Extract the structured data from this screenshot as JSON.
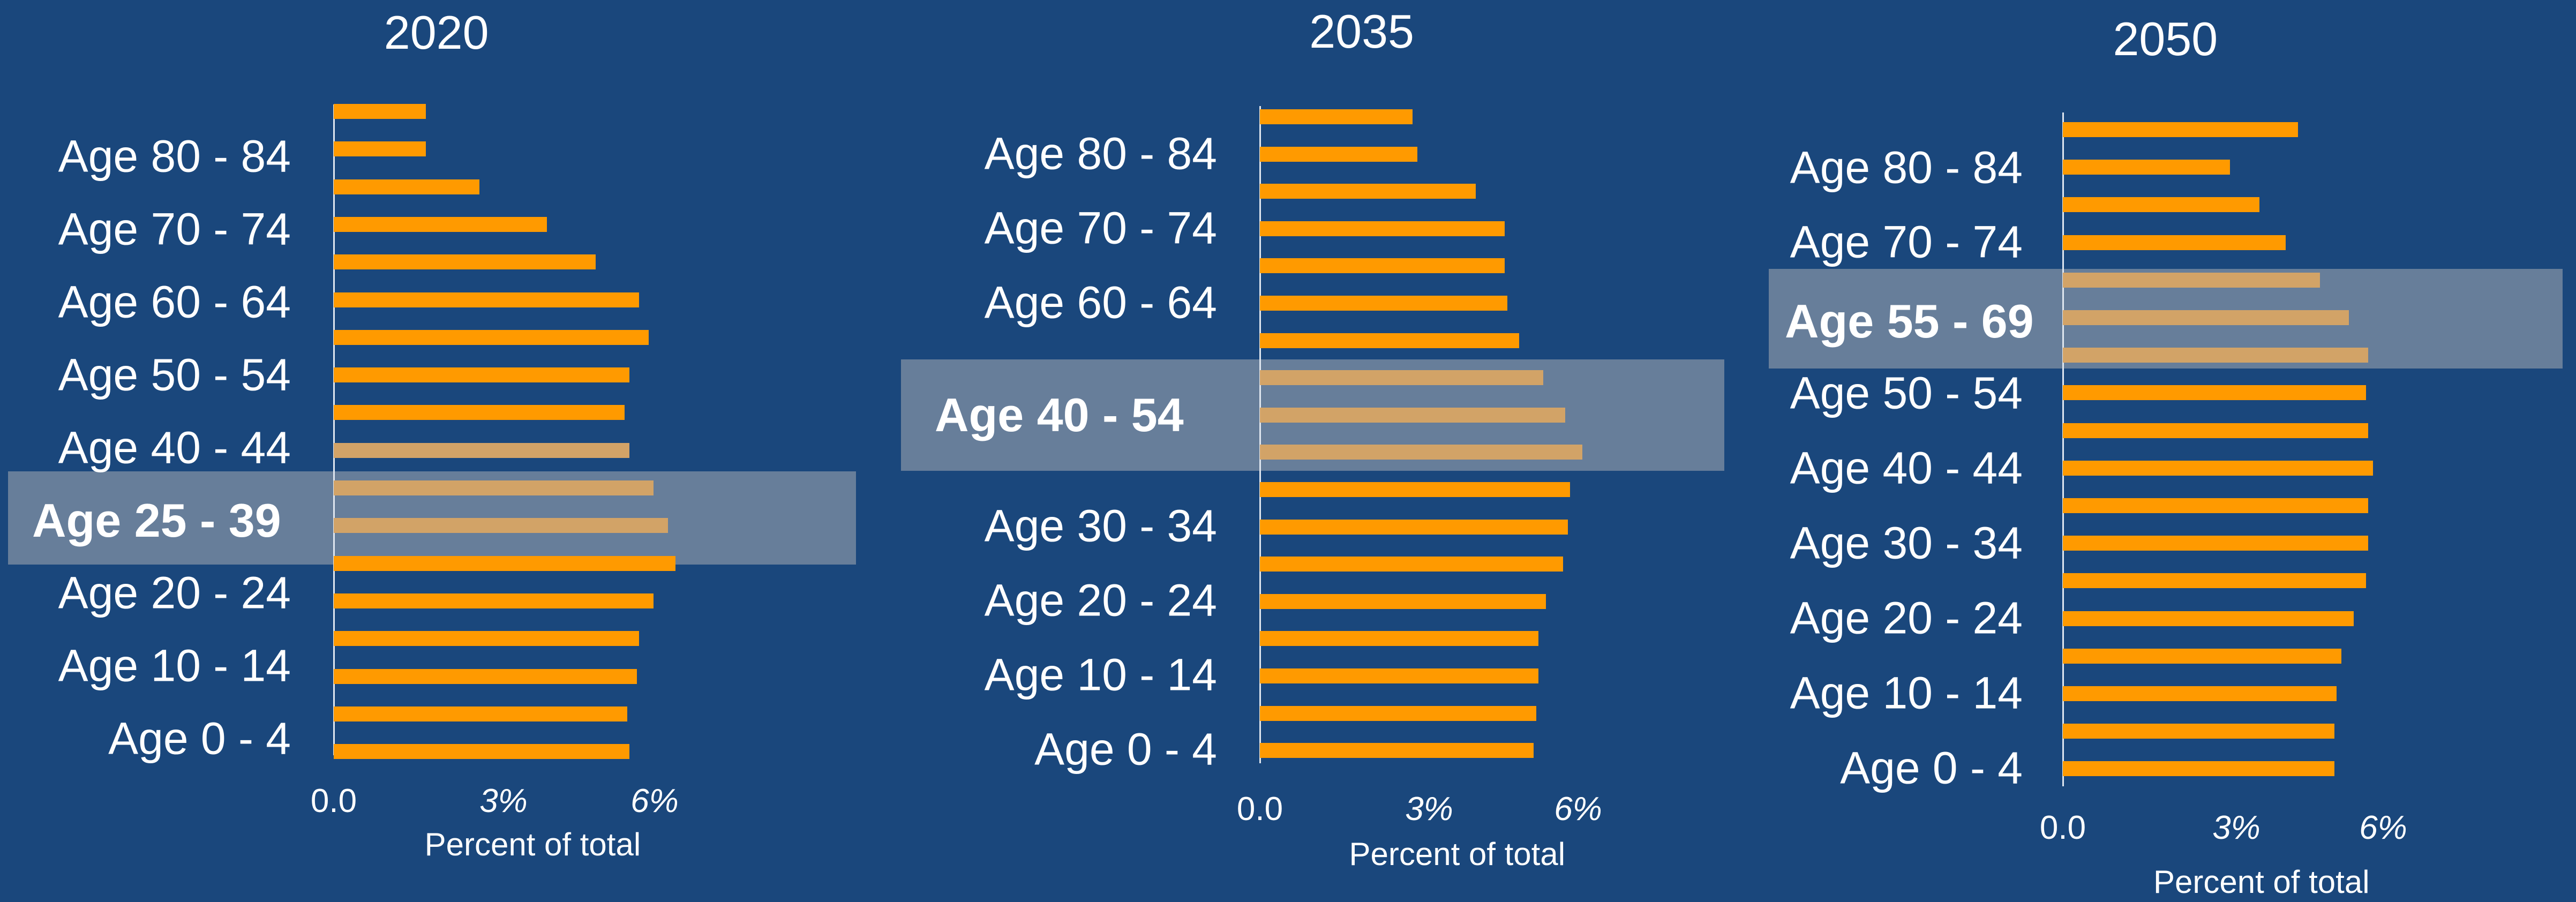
{
  "chart_data": [
    {
      "type": "bar",
      "orientation": "horizontal",
      "title": "2020",
      "xlabel": "Percent of total",
      "xlim": [
        0,
        7
      ],
      "x_tick_labels": [
        "0.0",
        "3%",
        "6%"
      ],
      "y_tick_labels": [
        "Age 80 - 84",
        "Age 70 - 74",
        "Age 60 - 64",
        "Age 50 - 54",
        "Age 40 - 44",
        "Age 25 - 39",
        "Age 20 - 24",
        "Age 10 - 14",
        "Age 0 - 4"
      ],
      "highlight_label": "Age 25 - 39",
      "values": [
        1.9,
        1.9,
        3.0,
        4.4,
        5.4,
        6.3,
        6.5,
        6.1,
        6.0,
        6.1,
        6.6,
        6.9,
        7.05,
        6.6,
        6.3,
        6.25,
        6.05,
        6.1
      ],
      "highlighted_bars": [
        9,
        10,
        11
      ]
    },
    {
      "type": "bar",
      "orientation": "horizontal",
      "title": "2035",
      "xlabel": "Percent of total",
      "xlim": [
        0,
        7
      ],
      "x_tick_labels": [
        "0.0",
        "3%",
        "6%"
      ],
      "y_tick_labels": [
        "Age 80 - 84",
        "Age 70 - 74",
        "Age 60 - 64",
        "Age 40 - 54",
        "Age 30 - 34",
        "Age 20 - 24",
        "Age 10 - 14",
        "Age 0 - 4"
      ],
      "highlight_label": "Age 40 - 54",
      "values": [
        3.15,
        3.25,
        4.45,
        5.05,
        5.05,
        5.1,
        5.35,
        5.85,
        6.3,
        6.65,
        6.4,
        6.35,
        6.25,
        5.9,
        5.75,
        5.75,
        5.7,
        5.65
      ],
      "highlighted_bars": [
        7,
        8,
        9
      ]
    },
    {
      "type": "bar",
      "orientation": "horizontal",
      "title": "2050",
      "xlabel": "Percent of total",
      "xlim": [
        0,
        7
      ],
      "x_tick_labels": [
        "0.0",
        "3%",
        "6%"
      ],
      "y_tick_labels": [
        "Age 80 - 84",
        "Age 70 - 74",
        "Age 55 - 69",
        "Age 50 - 54",
        "Age 40 - 44",
        "Age 30 - 34",
        "Age 20 - 24",
        "Age 10 - 14",
        "Age 0 - 4"
      ],
      "highlight_label": "Age 55 - 69",
      "values": [
        4.85,
        3.45,
        4.05,
        4.6,
        5.3,
        5.9,
        6.3,
        6.25,
        6.3,
        6.4,
        6.3,
        6.3,
        6.25,
        6.0,
        5.75,
        5.65,
        5.6,
        5.6
      ],
      "highlighted_bars": [
        4,
        5,
        6
      ]
    }
  ]
}
